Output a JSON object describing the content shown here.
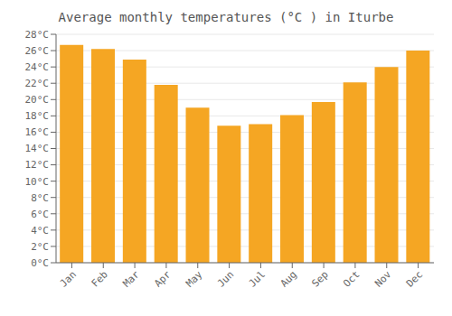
{
  "chart_data": {
    "type": "bar",
    "title": "Average monthly temperatures (°C ) in Iturbe",
    "categories": [
      "Jan",
      "Feb",
      "Mar",
      "Apr",
      "May",
      "Jun",
      "Jul",
      "Aug",
      "Sep",
      "Oct",
      "Nov",
      "Dec"
    ],
    "values": [
      26.7,
      26.2,
      24.9,
      21.8,
      19.0,
      16.8,
      17.0,
      18.1,
      19.7,
      22.1,
      24.0,
      26.0
    ],
    "color": "#F5A623",
    "ylim": [
      0,
      28
    ],
    "yticks": [
      {
        "value": 0,
        "label": "0°C"
      },
      {
        "value": 2,
        "label": "2°C"
      },
      {
        "value": 4,
        "label": "4°C"
      },
      {
        "value": 6,
        "label": "6°C"
      },
      {
        "value": 8,
        "label": "8°C"
      },
      {
        "value": 10,
        "label": "10°C"
      },
      {
        "value": 12,
        "label": "12°C"
      },
      {
        "value": 14,
        "label": "14°C"
      },
      {
        "value": 16,
        "label": "16°C"
      },
      {
        "value": 18,
        "label": "18°C"
      },
      {
        "value": 20,
        "label": "20°C"
      },
      {
        "value": 22,
        "label": "22°C"
      },
      {
        "value": 24,
        "label": "24°C"
      },
      {
        "value": 26,
        "label": "26°C"
      },
      {
        "value": 28,
        "label": "28°C"
      }
    ],
    "grid": true
  }
}
